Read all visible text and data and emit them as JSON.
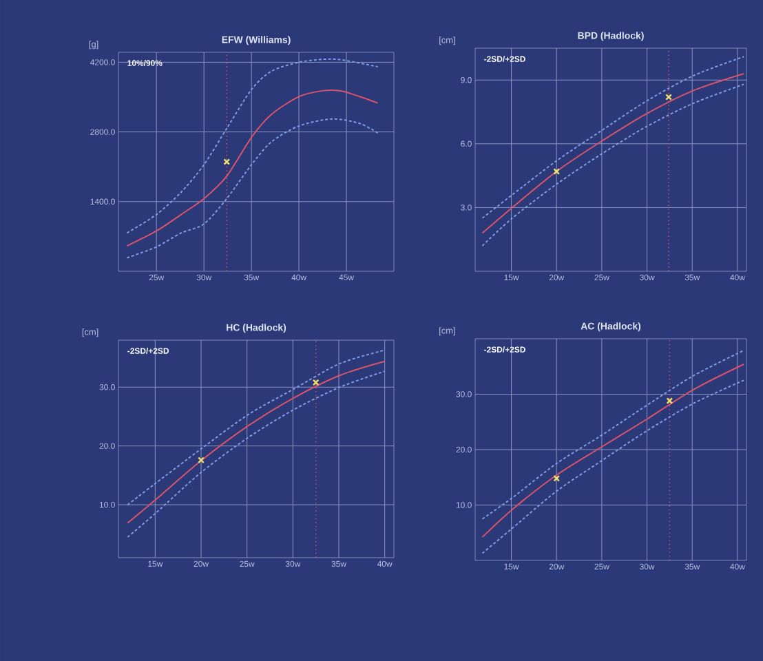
{
  "chart_data": [
    {
      "type": "line",
      "title": "EFW (Williams)",
      "ylabel": "[g]",
      "annotations": [
        "10%/90%"
      ],
      "grid": true,
      "xlim": [
        21,
        50
      ],
      "ylim": [
        0,
        4400
      ],
      "xticks": [
        {
          "value": 25,
          "label": "25w"
        },
        {
          "value": 30,
          "label": "30w"
        },
        {
          "value": 35,
          "label": "35w"
        },
        {
          "value": 40,
          "label": "40w"
        },
        {
          "value": 45,
          "label": "45w"
        }
      ],
      "yticks": [
        {
          "value": 1400,
          "label": "1400.0"
        },
        {
          "value": 2800,
          "label": "2800.0"
        },
        {
          "value": 4200,
          "label": "4200.0"
        }
      ],
      "ref_lines": [
        {
          "axis": "x",
          "value": 32.4,
          "color": "#c0506a",
          "line_style": "dotted"
        }
      ],
      "series": [
        {
          "color": "#d9536b",
          "line_style": "solid",
          "x": [
            21.9,
            25,
            27.6,
            30,
            32.4,
            35,
            37.1,
            40,
            42.6,
            44.5,
            46.4,
            48.3
          ],
          "values": [
            510,
            810,
            1140,
            1460,
            1910,
            2690,
            3150,
            3510,
            3630,
            3620,
            3510,
            3380
          ]
        },
        {
          "color": "#7f9be6",
          "line_style": "dashed",
          "x": [
            21.9,
            25,
            27.6,
            30,
            32.4,
            35,
            37.1,
            40,
            42.6,
            44.5,
            48.3
          ],
          "values": [
            770,
            1140,
            1590,
            2140,
            2870,
            3650,
            4020,
            4200,
            4260,
            4250,
            4110
          ]
        },
        {
          "color": "#7f9be6",
          "line_style": "dashed",
          "x": [
            21.9,
            25,
            27.6,
            30,
            32.4,
            35,
            37.1,
            40,
            43.5,
            46.4,
            48.3
          ],
          "values": [
            270,
            490,
            770,
            950,
            1460,
            2140,
            2600,
            2920,
            3060,
            2970,
            2780
          ]
        },
        {
          "type": "scatter",
          "marker": "cross",
          "color": "#f0e070",
          "x": [
            32.4
          ],
          "values": [
            2200
          ]
        }
      ]
    },
    {
      "type": "line",
      "title": "BPD (Hadlock)",
      "ylabel": "[cm]",
      "annotations": [
        "-2SD/+2SD"
      ],
      "grid": true,
      "xlim": [
        11,
        41
      ],
      "ylim": [
        0,
        10.5
      ],
      "xticks": [
        {
          "value": 15,
          "label": "15w"
        },
        {
          "value": 20,
          "label": "20w"
        },
        {
          "value": 25,
          "label": "25w"
        },
        {
          "value": 30,
          "label": "30w"
        },
        {
          "value": 35,
          "label": "35w"
        },
        {
          "value": 40,
          "label": "40w"
        }
      ],
      "yticks": [
        {
          "value": 3,
          "label": "3.0"
        },
        {
          "value": 6,
          "label": "6.0"
        },
        {
          "value": 9,
          "label": "9.0"
        }
      ],
      "ref_lines": [
        {
          "axis": "x",
          "value": 32.4,
          "color": "#c0506a",
          "line_style": "dotted"
        }
      ],
      "series": [
        {
          "color": "#d9536b",
          "line_style": "solid",
          "x": [
            11.8,
            15.1,
            20,
            24.9,
            29.9,
            35.1,
            40.7
          ],
          "values": [
            1.8,
            3.0,
            4.7,
            6.1,
            7.4,
            8.5,
            9.3
          ]
        },
        {
          "color": "#7f9be6",
          "line_style": "dashed",
          "x": [
            11.8,
            15.1,
            20,
            24.9,
            29.9,
            35.1,
            40.7
          ],
          "values": [
            2.5,
            3.6,
            5.2,
            6.6,
            8.0,
            9.2,
            10.1
          ]
        },
        {
          "color": "#7f9be6",
          "line_style": "dashed",
          "x": [
            11.8,
            15.1,
            20,
            24.9,
            29.9,
            35.1,
            40.7
          ],
          "values": [
            1.2,
            2.5,
            4.1,
            5.5,
            6.8,
            7.9,
            8.8
          ]
        },
        {
          "type": "scatter",
          "marker": "cross",
          "color": "#f0e070",
          "x": [
            20,
            32.4
          ],
          "values": [
            4.7,
            8.2
          ]
        }
      ]
    },
    {
      "type": "line",
      "title": "HC (Hadlock)",
      "ylabel": "[cm]",
      "annotations": [
        "-2SD/+2SD"
      ],
      "grid": true,
      "xlim": [
        11,
        41
      ],
      "ylim": [
        1,
        38
      ],
      "xticks": [
        {
          "value": 15,
          "label": "15w"
        },
        {
          "value": 20,
          "label": "20w"
        },
        {
          "value": 25,
          "label": "25w"
        },
        {
          "value": 30,
          "label": "30w"
        },
        {
          "value": 35,
          "label": "35w"
        },
        {
          "value": 40,
          "label": "40w"
        }
      ],
      "yticks": [
        {
          "value": 10,
          "label": "10.0"
        },
        {
          "value": 20,
          "label": "20.0"
        },
        {
          "value": 30,
          "label": "30.0"
        }
      ],
      "ref_lines": [
        {
          "axis": "x",
          "value": 32.5,
          "color": "#c0506a",
          "line_style": "dotted"
        }
      ],
      "series": [
        {
          "color": "#d9536b",
          "line_style": "solid",
          "x": [
            12,
            15,
            20,
            25.1,
            30,
            35.1,
            40
          ],
          "values": [
            6.9,
            10.8,
            17.5,
            23.4,
            28.1,
            32.0,
            34.4
          ]
        },
        {
          "color": "#7f9be6",
          "line_style": "dashed",
          "x": [
            12,
            15,
            20,
            25.1,
            30,
            35.1,
            40
          ],
          "values": [
            10.0,
            13.6,
            19.5,
            25.3,
            29.6,
            34.0,
            36.3
          ]
        },
        {
          "color": "#7f9be6",
          "line_style": "dashed",
          "x": [
            12,
            15,
            20,
            25.1,
            30,
            35.1,
            40
          ],
          "values": [
            4.5,
            8.5,
            15.5,
            21.4,
            26.1,
            30.0,
            32.7
          ]
        },
        {
          "type": "scatter",
          "marker": "cross",
          "color": "#f0e070",
          "x": [
            20,
            32.5
          ],
          "values": [
            17.6,
            30.8
          ]
        }
      ]
    },
    {
      "type": "line",
      "title": "AC (Hadlock)",
      "ylabel": "[cm]",
      "annotations": [
        "-2SD/+2SD"
      ],
      "grid": true,
      "xlim": [
        11,
        41
      ],
      "ylim": [
        0,
        40
      ],
      "xticks": [
        {
          "value": 15,
          "label": "15w"
        },
        {
          "value": 20,
          "label": "20w"
        },
        {
          "value": 25,
          "label": "25w"
        },
        {
          "value": 30,
          "label": "30w"
        },
        {
          "value": 35,
          "label": "35w"
        },
        {
          "value": 40,
          "label": "40w"
        }
      ],
      "yticks": [
        {
          "value": 10,
          "label": "10.0"
        },
        {
          "value": 20,
          "label": "20.0"
        },
        {
          "value": 30,
          "label": "30.0"
        }
      ],
      "ref_lines": [
        {
          "axis": "x",
          "value": 32.5,
          "color": "#c0506a",
          "line_style": "dotted"
        }
      ],
      "series": [
        {
          "color": "#d9536b",
          "line_style": "solid",
          "x": [
            11.8,
            15.1,
            20,
            24.9,
            29.9,
            35.1,
            40.7
          ],
          "values": [
            4.2,
            9.2,
            15.4,
            20.4,
            25.4,
            30.8,
            35.4
          ]
        },
        {
          "color": "#7f9be6",
          "line_style": "dashed",
          "x": [
            11.8,
            15.1,
            20,
            24.9,
            29.9,
            35.1,
            40.7
          ],
          "values": [
            7.5,
            11.3,
            17.5,
            22.5,
            27.9,
            33.3,
            37.9
          ]
        },
        {
          "color": "#7f9be6",
          "line_style": "dashed",
          "x": [
            11.8,
            15.1,
            20,
            24.9,
            29.9,
            35.1,
            40.7
          ],
          "values": [
            1.3,
            5.8,
            12.5,
            17.9,
            23.3,
            28.3,
            32.5
          ]
        },
        {
          "type": "scatter",
          "marker": "cross",
          "color": "#f0e070",
          "x": [
            20,
            32.5
          ],
          "values": [
            14.8,
            28.8
          ]
        }
      ]
    }
  ]
}
